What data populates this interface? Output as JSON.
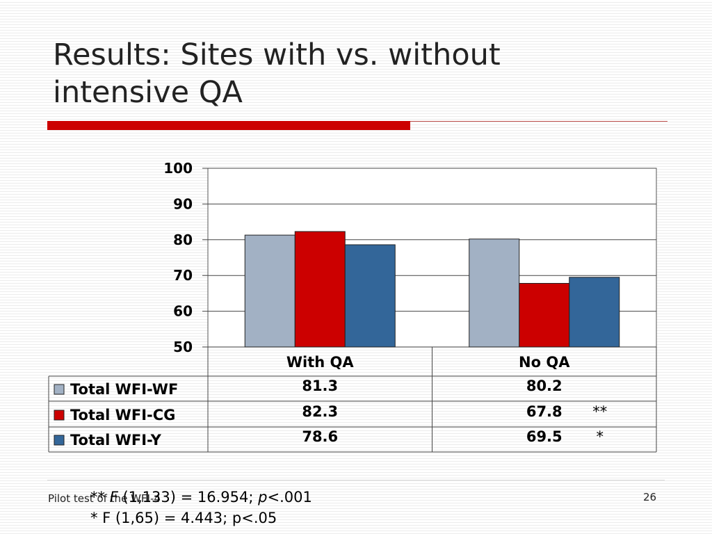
{
  "slide": {
    "title_line1": "Results: Sites with vs. without",
    "title_line2": "intensive QA",
    "footer_left": "Pilot test of the WFI-4",
    "slide_number": "26"
  },
  "significance": {
    "line1": [
      "** ",
      "F",
      " (1,133) = 16.954; ",
      "p",
      "<.001"
    ],
    "line2": "*  F (1,65) = 4.443; p<.05"
  },
  "colors": {
    "wf": "#a2b1c4",
    "cg": "#cc0000",
    "y": "#336699",
    "title_bar": "#cc0000"
  },
  "chart_data": {
    "type": "bar",
    "categories": [
      "With QA",
      "No QA"
    ],
    "series": [
      {
        "name": "Total WFI-WF",
        "values": [
          81.3,
          80.2
        ],
        "markers": [
          "",
          ""
        ],
        "color": "#a2b1c4"
      },
      {
        "name": "Total WFI-CG",
        "values": [
          82.3,
          67.8
        ],
        "markers": [
          "",
          "**"
        ],
        "color": "#cc0000"
      },
      {
        "name": "Total WFI-Y",
        "values": [
          78.6,
          69.5
        ],
        "markers": [
          "",
          "*"
        ],
        "color": "#336699"
      }
    ],
    "yticks": [
      50,
      60,
      70,
      80,
      90,
      100
    ],
    "ylim": [
      50,
      100
    ],
    "grid": true,
    "legend": "data-table"
  }
}
